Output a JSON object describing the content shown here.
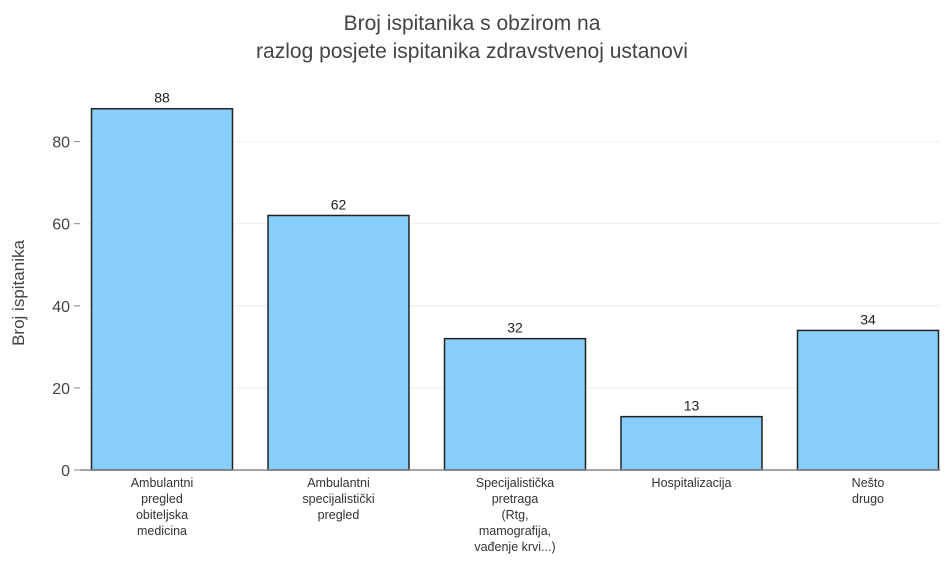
{
  "chart_data": {
    "type": "bar",
    "title_lines": [
      "Broj ispitanika s obzirom na",
      "razlog posjete ispitanika zdravstvenoj ustanovi"
    ],
    "xlabel": "",
    "ylabel": "Broj ispitanika",
    "categories": [
      [
        "Ambulantni",
        "pregled",
        "obiteljska",
        "medicina"
      ],
      [
        "Ambulantni",
        "specijalistički",
        "pregled"
      ],
      [
        "Specijalistička",
        "pretraga",
        "(Rtg,",
        "mamografija,",
        "vađenje krvi...)"
      ],
      [
        "Hospitalizacija"
      ],
      [
        "Nešto",
        "drugo"
      ]
    ],
    "values": [
      88,
      62,
      32,
      13,
      34
    ],
    "data_labels": [
      "88",
      "62",
      "32",
      "13",
      "34"
    ],
    "ylim": [
      0,
      95
    ],
    "yticks": [
      0,
      20,
      40,
      60,
      80
    ],
    "ytick_labels": [
      "0",
      "20",
      "40",
      "60",
      "80"
    ],
    "grid": true,
    "colors": {
      "bar_fill": "#87cefa",
      "bar_stroke": "#222222",
      "grid": "#eeeeee",
      "axis": "#888888"
    }
  }
}
